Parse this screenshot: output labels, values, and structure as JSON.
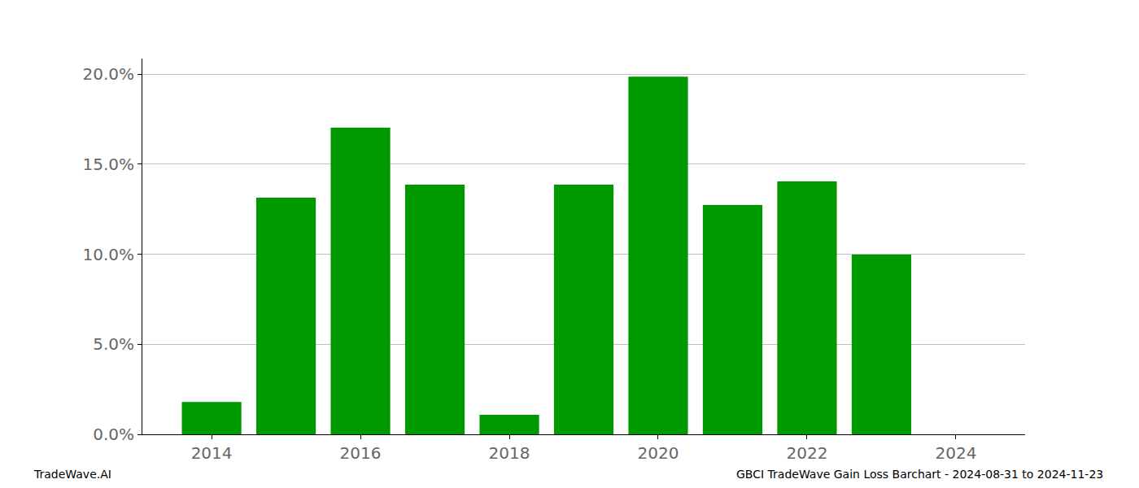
{
  "chart_data": {
    "type": "bar",
    "x": [
      2014,
      2015,
      2016,
      2017,
      2018,
      2019,
      2020,
      2021,
      2022,
      2023
    ],
    "values": [
      1.8,
      13.14,
      17.02,
      13.86,
      1.08,
      13.86,
      19.86,
      12.73,
      14.04,
      9.98
    ],
    "color": "#009900",
    "xlim": [
      2013.07,
      2024.93
    ],
    "xticks": [
      2014,
      2016,
      2018,
      2020,
      2022,
      2024
    ],
    "ylim": [
      0,
      20.86
    ],
    "yticks": [
      {
        "value": 0,
        "label": "0.0%"
      },
      {
        "value": 5,
        "label": "5.0%"
      },
      {
        "value": 10,
        "label": "10.0%"
      },
      {
        "value": 15,
        "label": "15.0%"
      },
      {
        "value": 20,
        "label": "20.0%"
      }
    ],
    "grid": true,
    "annotations": [
      {
        "text": "TradeWave.AI",
        "position": "bottom left"
      },
      {
        "text": "GBCI TradeWave Gain Loss Barchart - 2024-08-31 to 2024-11-23",
        "position": "bottom right"
      }
    ]
  }
}
